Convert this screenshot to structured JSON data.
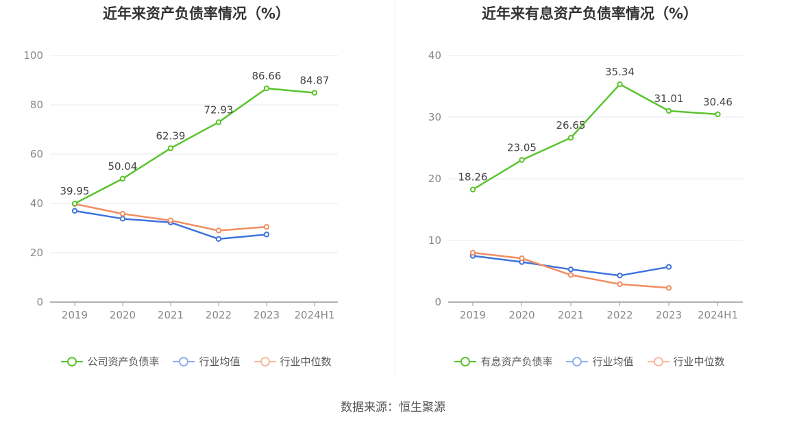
{
  "source": "数据来源：恒生聚源",
  "chart_data": [
    {
      "type": "line",
      "title": "近年来资产负债率情况（%）",
      "categories": [
        "2019",
        "2020",
        "2021",
        "2022",
        "2023",
        "2024H1"
      ],
      "ylim": [
        0,
        100
      ],
      "yticks": [
        "0",
        "20",
        "40",
        "60",
        "80",
        "100"
      ],
      "grid": true,
      "legend_position": "bottom",
      "series": [
        {
          "name": "公司资产负债率",
          "color": "#5ac42d",
          "values": [
            39.95,
            50.04,
            62.39,
            72.93,
            86.66,
            84.87
          ],
          "labels": [
            "39.95",
            "50.04",
            "62.39",
            "72.93",
            "86.66",
            "84.87"
          ]
        },
        {
          "name": "行业均值",
          "color": "#3e73de",
          "values": [
            37.0,
            33.8,
            32.3,
            25.6,
            27.4,
            null
          ]
        },
        {
          "name": "行业中位数",
          "color": "#f28d62",
          "values": [
            39.8,
            35.8,
            33.1,
            29.0,
            30.5,
            null
          ]
        }
      ]
    },
    {
      "type": "line",
      "title": "近年来有息资产负债率情况（%）",
      "categories": [
        "2019",
        "2020",
        "2021",
        "2022",
        "2023",
        "2024H1"
      ],
      "ylim": [
        0,
        40
      ],
      "yticks": [
        "0",
        "10",
        "20",
        "30",
        "40"
      ],
      "grid": true,
      "legend_position": "bottom",
      "series": [
        {
          "name": "有息资产负债率",
          "color": "#5ac42d",
          "values": [
            18.26,
            23.05,
            26.65,
            35.34,
            31.01,
            30.46
          ],
          "labels": [
            "18.26",
            "23.05",
            "26.65",
            "35.34",
            "31.01",
            "30.46"
          ]
        },
        {
          "name": "行业均值",
          "color": "#3e73de",
          "values": [
            7.5,
            6.5,
            5.3,
            4.3,
            5.7,
            null
          ]
        },
        {
          "name": "行业中位数",
          "color": "#f28d62",
          "values": [
            8.0,
            7.1,
            4.4,
            2.9,
            2.3,
            null
          ]
        }
      ]
    }
  ]
}
